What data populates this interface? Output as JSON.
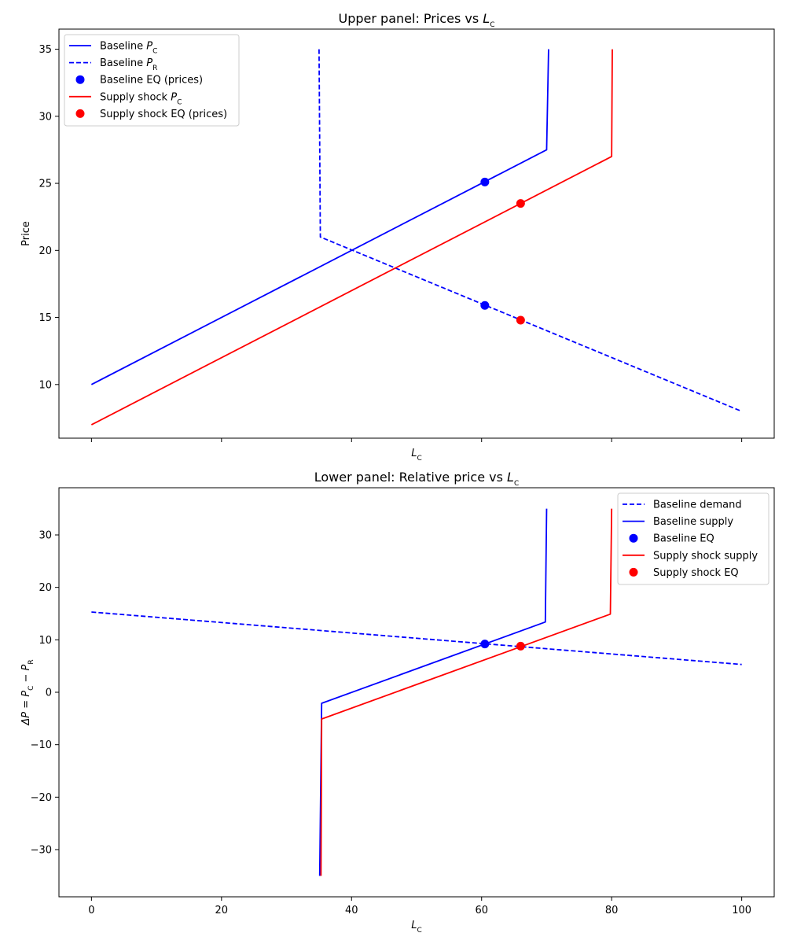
{
  "chart_data": [
    {
      "type": "line",
      "title_prefix": "Upper panel: Prices vs ",
      "title_var": "L",
      "title_sub": "C",
      "xlabel_var": "L",
      "xlabel_sub": "C",
      "ylabel": "Price",
      "xlim": [
        -5,
        105
      ],
      "ylim": [
        6,
        36.5
      ],
      "xticks": [
        0,
        20,
        40,
        60,
        80,
        100
      ],
      "yticks": [
        10,
        15,
        20,
        25,
        30,
        35
      ],
      "show_xtick_labels": false,
      "legend_position": "top-left",
      "series": [
        {
          "name": "Baseline P_C",
          "legend_text": "Baseline ",
          "legend_var": "P",
          "legend_sub": "C",
          "color": "#0000ff",
          "style": "solid",
          "points": [
            [
              0,
              10
            ],
            [
              70,
              27.5
            ],
            [
              70.3,
              35
            ]
          ]
        },
        {
          "name": "Baseline P_R",
          "legend_text": "Baseline ",
          "legend_var": "P",
          "legend_sub": "R",
          "color": "#0000ff",
          "style": "dashed",
          "points": [
            [
              35,
              35
            ],
            [
              35.2,
              21
            ],
            [
              100,
              8
            ]
          ]
        },
        {
          "name": "Baseline EQ (prices)",
          "legend_text": "Baseline EQ (prices)",
          "color": "#0000ff",
          "style": "scatter",
          "points": [
            [
              60.5,
              25.1
            ],
            [
              60.5,
              15.9
            ]
          ]
        },
        {
          "name": "Supply shock P_C",
          "legend_text": "Supply shock ",
          "legend_var": "P",
          "legend_sub": "C",
          "color": "#ff0000",
          "style": "solid",
          "points": [
            [
              0,
              7
            ],
            [
              80,
              27
            ],
            [
              80.1,
              35
            ]
          ]
        },
        {
          "name": "Supply shock EQ (prices)",
          "legend_text": "Supply shock EQ (prices)",
          "color": "#ff0000",
          "style": "scatter",
          "points": [
            [
              66,
              23.5
            ],
            [
              66,
              14.8
            ]
          ]
        }
      ]
    },
    {
      "type": "line",
      "title_prefix": "Lower panel: Relative price vs ",
      "title_var": "L",
      "title_sub": "C",
      "xlabel_var": "L",
      "xlabel_sub": "C",
      "ylabel_var": "ΔP = P",
      "ylabel_sub1": "C",
      "ylabel_mid": " − P",
      "ylabel_sub2": "R",
      "xlim": [
        -5,
        105
      ],
      "ylim": [
        -39,
        39
      ],
      "xticks": [
        0,
        20,
        40,
        60,
        80,
        100
      ],
      "yticks": [
        -30,
        -20,
        -10,
        0,
        10,
        20,
        30
      ],
      "show_xtick_labels": true,
      "legend_position": "top-right",
      "series": [
        {
          "name": "Baseline demand",
          "legend_text": "Baseline demand",
          "color": "#0000ff",
          "style": "dashed",
          "points": [
            [
              0,
              15.3
            ],
            [
              100,
              5.3
            ]
          ]
        },
        {
          "name": "Baseline supply",
          "legend_text": "Baseline supply",
          "color": "#0000ff",
          "style": "solid",
          "points": [
            [
              35.1,
              -35
            ],
            [
              35.4,
              -2.1
            ],
            [
              69.8,
              13.4
            ],
            [
              70,
              35
            ]
          ]
        },
        {
          "name": "Baseline EQ",
          "legend_text": "Baseline EQ",
          "color": "#0000ff",
          "style": "scatter",
          "points": [
            [
              60.5,
              9.2
            ]
          ]
        },
        {
          "name": "Supply shock supply",
          "legend_text": "Supply shock supply",
          "color": "#ff0000",
          "style": "solid",
          "points": [
            [
              35.3,
              -35
            ],
            [
              35.4,
              -5.1
            ],
            [
              79.8,
              14.9
            ],
            [
              80,
              35
            ]
          ]
        },
        {
          "name": "Supply shock EQ",
          "legend_text": "Supply shock EQ",
          "color": "#ff0000",
          "style": "scatter",
          "points": [
            [
              66,
              8.8
            ]
          ]
        }
      ]
    }
  ]
}
